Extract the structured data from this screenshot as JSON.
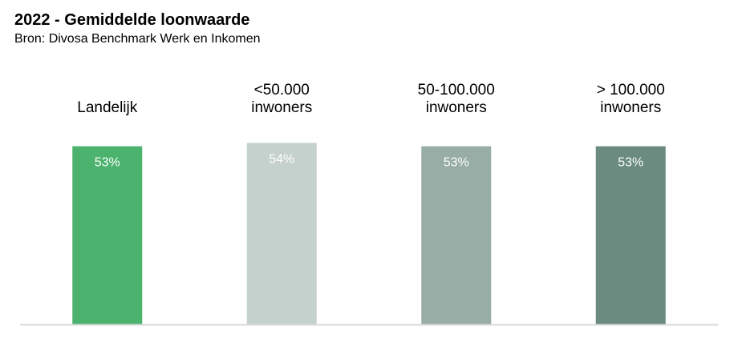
{
  "chart_data": {
    "type": "bar",
    "title": "2022 - Gemiddelde loonwaarde",
    "subtitle": "Bron: Divosa Benchmark Werk en Inkomen",
    "categories": [
      [
        "Landelijk"
      ],
      [
        "<50.000",
        "inwoners"
      ],
      [
        "50-100.000",
        "inwoners"
      ],
      [
        "> 100.000",
        "inwoners"
      ]
    ],
    "values": [
      53,
      54,
      53,
      53
    ],
    "value_labels": [
      "53%",
      "54%",
      "53%",
      "53%"
    ],
    "colors": [
      "#4bb36e",
      "#c5d1cc",
      "#97ada6",
      "#6b8a80"
    ],
    "ylim": [
      0,
      55
    ],
    "grid": false,
    "legend": "none",
    "axis_color": "#d9d9d9"
  }
}
